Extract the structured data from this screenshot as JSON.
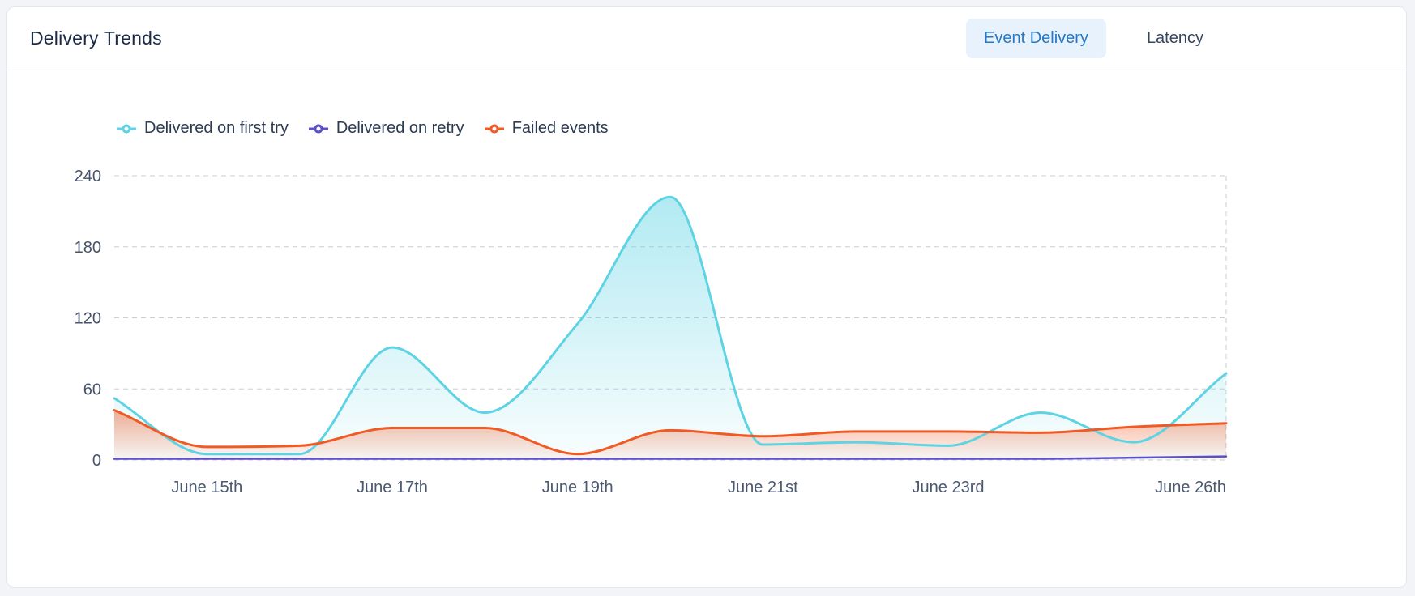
{
  "card": {
    "title": "Delivery Trends",
    "tabs": [
      {
        "label": "Event Delivery",
        "active": true
      },
      {
        "label": "Latency",
        "active": false
      }
    ]
  },
  "theme": {
    "title_color": "#1b2a47",
    "tab_active_bg": "#e8f2fc",
    "tab_active_text": "#2478c8",
    "tab_text": "#36455e",
    "card_border": "#e3e8ee"
  },
  "chart_data": {
    "type": "area",
    "title": "Delivery Trends",
    "num_points": 13,
    "x_tick_labels": [
      {
        "label": "June 15th",
        "index": 1
      },
      {
        "label": "June 17th",
        "index": 3
      },
      {
        "label": "June 19th",
        "index": 5
      },
      {
        "label": "June 21st",
        "index": 7
      },
      {
        "label": "June 23rd",
        "index": 9
      },
      {
        "label": "June 26th",
        "index": 12,
        "anchor": "end"
      }
    ],
    "ylim": [
      0,
      240
    ],
    "yticks": [
      0,
      60,
      120,
      180,
      240
    ],
    "grid": "dashed-horizontal",
    "legend_position": "top-left",
    "series": [
      {
        "name": "Delivered on first try",
        "color": "#5ed3e4",
        "fill": true,
        "values": [
          52,
          5,
          5,
          95,
          40,
          115,
          222,
          13,
          15,
          12,
          40,
          15,
          73
        ]
      },
      {
        "name": "Delivered on retry",
        "color": "#5a50c8",
        "fill": false,
        "values": [
          1,
          1,
          1,
          1,
          1,
          1,
          1,
          1,
          1,
          1,
          1,
          2,
          3
        ]
      },
      {
        "name": "Failed events",
        "color": "#ef5a25",
        "fill": true,
        "values": [
          42,
          11,
          12,
          27,
          27,
          5,
          25,
          20,
          24,
          24,
          23,
          28,
          31
        ]
      }
    ]
  }
}
